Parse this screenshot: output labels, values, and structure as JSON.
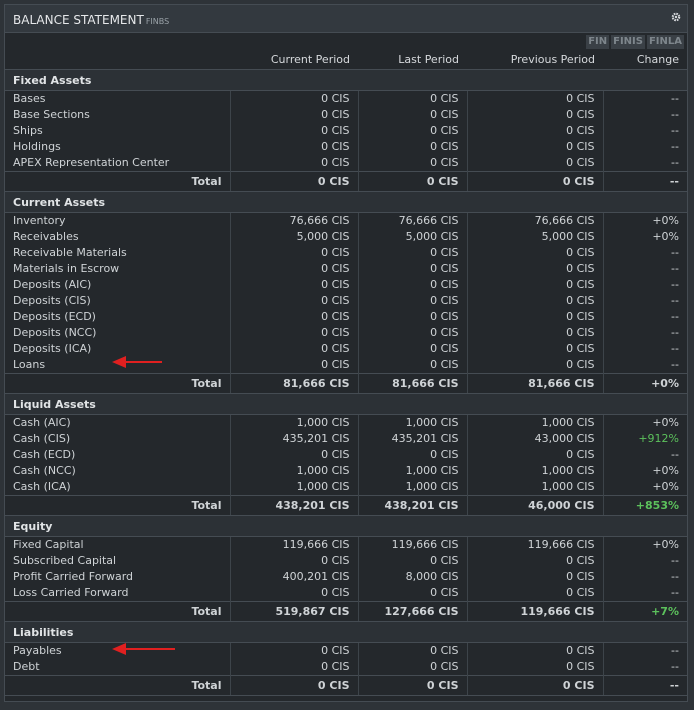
{
  "header": {
    "title": "BALANCE STATEMENT",
    "code": "FINBS"
  },
  "tabs": [
    "FIN",
    "FINIS",
    "FINLA"
  ],
  "columns": [
    "Current Period",
    "Last Period",
    "Previous Period",
    "Change"
  ],
  "sections": [
    {
      "title": "Fixed Assets",
      "rows": [
        [
          "Bases",
          "0 CIS",
          "0 CIS",
          "0 CIS",
          "--"
        ],
        [
          "Base Sections",
          "0 CIS",
          "0 CIS",
          "0 CIS",
          "--"
        ],
        [
          "Ships",
          "0 CIS",
          "0 CIS",
          "0 CIS",
          "--"
        ],
        [
          "Holdings",
          "0 CIS",
          "0 CIS",
          "0 CIS",
          "--"
        ],
        [
          "APEX Representation Center",
          "0 CIS",
          "0 CIS",
          "0 CIS",
          "--"
        ]
      ],
      "total": [
        "Total",
        "0 CIS",
        "0 CIS",
        "0 CIS",
        "--"
      ]
    },
    {
      "title": "Current Assets",
      "rows": [
        [
          "Inventory",
          "76,666 CIS",
          "76,666 CIS",
          "76,666 CIS",
          "+0%"
        ],
        [
          "Receivables",
          "5,000 CIS",
          "5,000 CIS",
          "5,000 CIS",
          "+0%"
        ],
        [
          "Receivable Materials",
          "0 CIS",
          "0 CIS",
          "0 CIS",
          "--"
        ],
        [
          "Materials in Escrow",
          "0 CIS",
          "0 CIS",
          "0 CIS",
          "--"
        ],
        [
          "Deposits (AIC)",
          "0 CIS",
          "0 CIS",
          "0 CIS",
          "--"
        ],
        [
          "Deposits (CIS)",
          "0 CIS",
          "0 CIS",
          "0 CIS",
          "--"
        ],
        [
          "Deposits (ECD)",
          "0 CIS",
          "0 CIS",
          "0 CIS",
          "--"
        ],
        [
          "Deposits (NCC)",
          "0 CIS",
          "0 CIS",
          "0 CIS",
          "--"
        ],
        [
          "Deposits (ICA)",
          "0 CIS",
          "0 CIS",
          "0 CIS",
          "--"
        ],
        [
          "Loans",
          "0 CIS",
          "0 CIS",
          "0 CIS",
          "--"
        ]
      ],
      "total": [
        "Total",
        "81,666 CIS",
        "81,666 CIS",
        "81,666 CIS",
        "+0%"
      ]
    },
    {
      "title": "Liquid Assets",
      "rows": [
        [
          "Cash (AIC)",
          "1,000 CIS",
          "1,000 CIS",
          "1,000 CIS",
          "+0%"
        ],
        [
          "Cash (CIS)",
          "435,201 CIS",
          "435,201 CIS",
          "43,000 CIS",
          "+912%"
        ],
        [
          "Cash (ECD)",
          "0 CIS",
          "0 CIS",
          "0 CIS",
          "--"
        ],
        [
          "Cash (NCC)",
          "1,000 CIS",
          "1,000 CIS",
          "1,000 CIS",
          "+0%"
        ],
        [
          "Cash (ICA)",
          "1,000 CIS",
          "1,000 CIS",
          "1,000 CIS",
          "+0%"
        ]
      ],
      "total": [
        "Total",
        "438,201 CIS",
        "438,201 CIS",
        "46,000 CIS",
        "+853%"
      ]
    },
    {
      "title": "Equity",
      "rows": [
        [
          "Fixed Capital",
          "119,666 CIS",
          "119,666 CIS",
          "119,666 CIS",
          "+0%"
        ],
        [
          "Subscribed Capital",
          "0 CIS",
          "0 CIS",
          "0 CIS",
          "--"
        ],
        [
          "Profit Carried Forward",
          "400,201 CIS",
          "8,000 CIS",
          "0 CIS",
          "--"
        ],
        [
          "Loss Carried Forward",
          "0 CIS",
          "0 CIS",
          "0 CIS",
          "--"
        ]
      ],
      "total": [
        "Total",
        "519,867 CIS",
        "127,666 CIS",
        "119,666 CIS",
        "+7%"
      ]
    },
    {
      "title": "Liabilities",
      "rows": [
        [
          "Payables",
          "0 CIS",
          "0 CIS",
          "0 CIS",
          "--"
        ],
        [
          "Debt",
          "0 CIS",
          "0 CIS",
          "0 CIS",
          "--"
        ]
      ],
      "total": [
        "Total",
        "0 CIS",
        "0 CIS",
        "0 CIS",
        "--"
      ]
    }
  ]
}
